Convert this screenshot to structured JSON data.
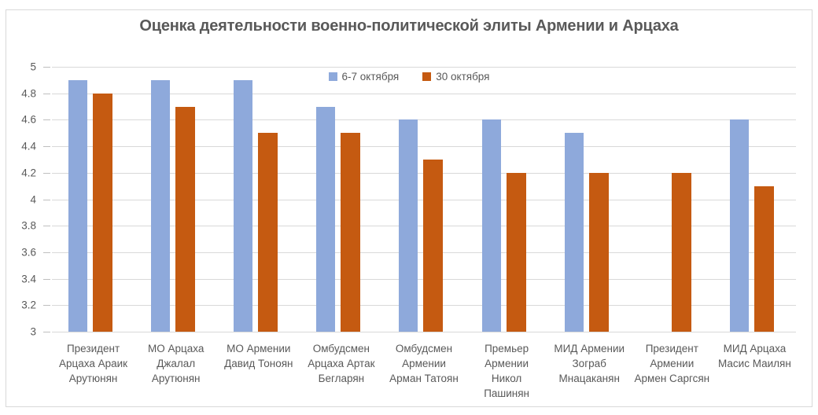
{
  "colors": {
    "series_blue": "#8EA9DB",
    "series_orange": "#C55A11",
    "gridline": "#D9D9D9",
    "tick_mark": "#BFBFBF",
    "chart_border": "#D9D9D9",
    "text": "#595959",
    "background": "#FFFFFF"
  },
  "chart_data": {
    "type": "bar",
    "title": "Оценка деятельности военно-политической элиты Армении и Арцаха",
    "categories": [
      "Президент Арцаха Араик Арутюнян",
      "МО Арцаха Джалал Арутюнян",
      "МО Армении Давид Тоноян",
      "Омбудсмен Арцаха Артак Бегларян",
      "Омбудсмен Армении Арман Татоян",
      "Премьер Армении Никол Пашинян",
      "МИД Армении Зограб Мнацаканян",
      "Президент Армении Армен Саргсян",
      "МИД Арцаха Масис Маилян"
    ],
    "categories_display": [
      "Президент\nАрцаха Араик\nАрутюнян",
      "МО Арцаха\nДжалал\nАрутюнян",
      "МО Армении\nДавид Тоноян",
      "Омбудсмен\nАрцаха Артак\nБегларян",
      "Омбудсмен\nАрмении\nАрман Татоян",
      "Премьер\nАрмении\nНикол\nПашинян",
      "МИД Армении\nЗограб\nМнацаканян",
      "Президент\nАрмении\nАрмен Саргсян",
      "МИД Арцаха\nМасис Маилян"
    ],
    "series": [
      {
        "name": "6-7 октября",
        "color": "#8EA9DB",
        "values": [
          4.9,
          4.9,
          4.9,
          4.7,
          4.6,
          4.6,
          4.5,
          null,
          4.6
        ]
      },
      {
        "name": "30 октября",
        "color": "#C55A11",
        "values": [
          4.8,
          4.7,
          4.5,
          4.5,
          4.3,
          4.2,
          4.2,
          4.2,
          4.1
        ]
      }
    ],
    "ylim": [
      3,
      5
    ],
    "ytick_step": 0.2,
    "ytick_labels": [
      "5",
      "4.8",
      "4.6",
      "4.4",
      "4.2",
      "4",
      "3.8",
      "3.6",
      "3.4",
      "3.2",
      "3"
    ],
    "grid": true,
    "legend_position": "top-center"
  }
}
